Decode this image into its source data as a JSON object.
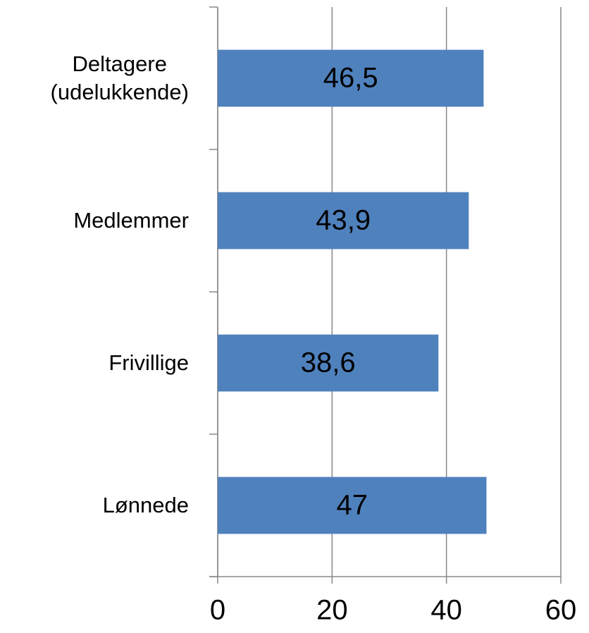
{
  "chart_data": {
    "type": "barh",
    "categories": [
      "Deltagere\n(udelukkende)",
      "Medlemmer",
      "Frivillige",
      "Lønnede"
    ],
    "values": [
      46.5,
      43.9,
      38.6,
      47
    ],
    "value_labels": [
      "46,5",
      "43,9",
      "38,6",
      "47"
    ],
    "color": "#4f81bd",
    "xlim": [
      0,
      60
    ],
    "xticks": [
      0,
      20,
      40,
      60
    ],
    "grid": true
  }
}
